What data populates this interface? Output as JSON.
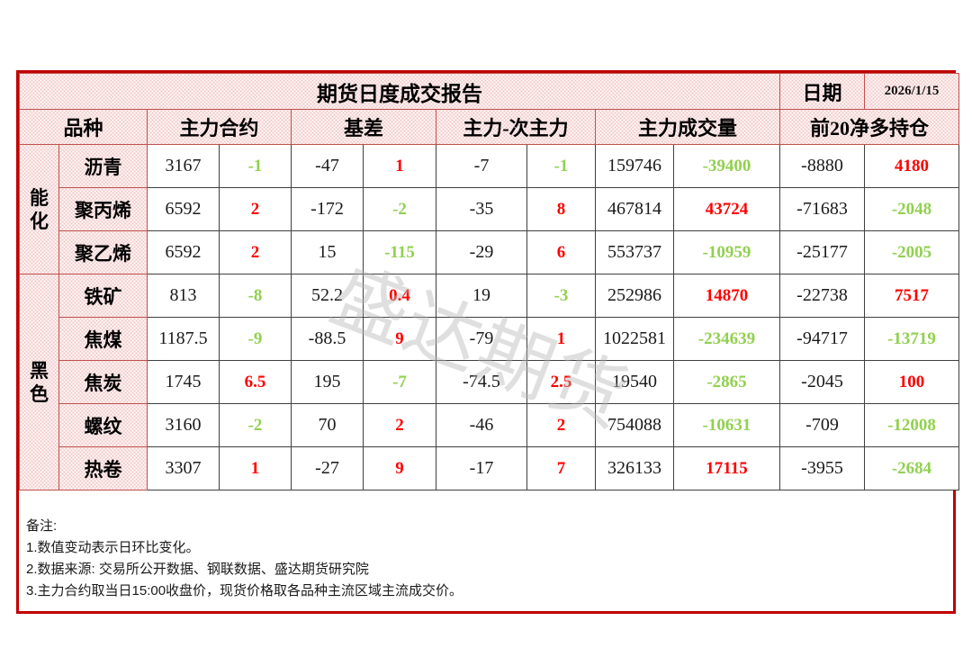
{
  "report": {
    "title": "期货日度成交报告",
    "date_label": "日期",
    "date_value": "2026/1/15",
    "watermark": "盛达期货",
    "columns": [
      "品种",
      "主力合约",
      "基差",
      "主力-次主力",
      "主力成交量",
      "前20净多持仓"
    ],
    "groups": [
      {
        "name": "能化",
        "rows": [
          {
            "name": "沥青",
            "values": [
              "3167",
              "-47",
              "-7",
              "159746",
              "-8880"
            ],
            "changes": [
              "-1",
              "1",
              "-1",
              "-39400",
              "4180"
            ]
          },
          {
            "name": "聚丙烯",
            "values": [
              "6592",
              "-172",
              "-35",
              "467814",
              "-71683"
            ],
            "changes": [
              "2",
              "-2",
              "8",
              "43724",
              "-2048"
            ]
          },
          {
            "name": "聚乙烯",
            "values": [
              "6592",
              "15",
              "-29",
              "553737",
              "-25177"
            ],
            "changes": [
              "2",
              "-115",
              "6",
              "-10959",
              "-2005"
            ]
          }
        ]
      },
      {
        "name": "黑色",
        "rows": [
          {
            "name": "铁矿",
            "values": [
              "813",
              "52.2",
              "19",
              "252986",
              "-22738"
            ],
            "changes": [
              "-8",
              "0.4",
              "-3",
              "14870",
              "7517"
            ]
          },
          {
            "name": "焦煤",
            "values": [
              "1187.5",
              "-88.5",
              "-79",
              "1022581",
              "-94717"
            ],
            "changes": [
              "-9",
              "9",
              "1",
              "-234639",
              "-13719"
            ]
          },
          {
            "name": "焦炭",
            "values": [
              "1745",
              "195",
              "-74.5",
              "19540",
              "-2045"
            ],
            "changes": [
              "6.5",
              "-7",
              "2.5",
              "-2865",
              "100"
            ]
          },
          {
            "name": "螺纹",
            "values": [
              "3160",
              "70",
              "-46",
              "754088",
              "-709"
            ],
            "changes": [
              "-2",
              "2",
              "2",
              "-10631",
              "-12008"
            ]
          },
          {
            "name": "热卷",
            "values": [
              "3307",
              "-27",
              "-17",
              "326133",
              "-3955"
            ],
            "changes": [
              "1",
              "9",
              "7",
              "17115",
              "-2684"
            ]
          }
        ]
      }
    ],
    "notes": [
      "备注:",
      "1.数值变动表示日环比变化。",
      "2.数据来源: 交易所公开数据、钢联数据、盛达期货研究院",
      "3.主力合约取当日15:00收盘价，现货价格取各品种主流区域主流成交价。"
    ],
    "colors": {
      "positive_change": "#ff0000",
      "negative_change": "#92d050",
      "frame_red": "#c00000",
      "hatch_line_red": "#c0504d",
      "grid_gray": "#404040"
    }
  }
}
